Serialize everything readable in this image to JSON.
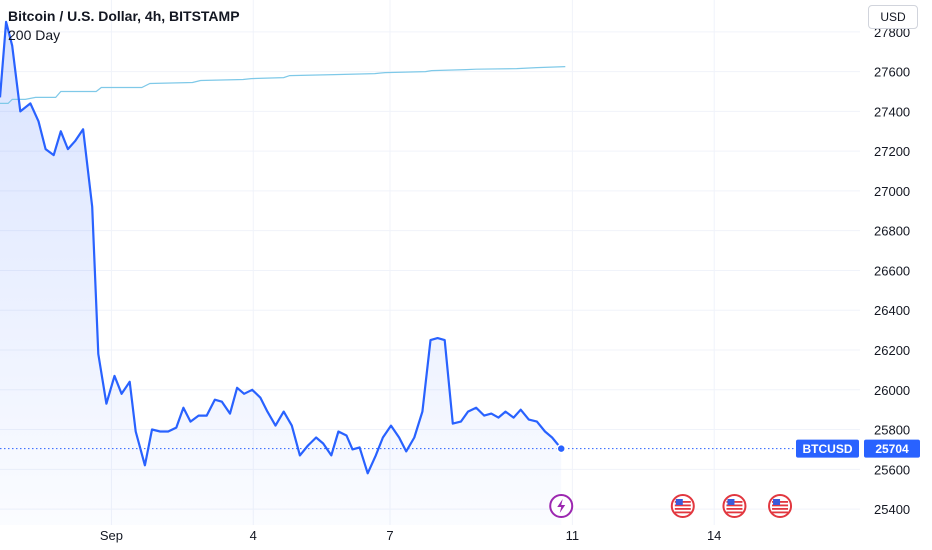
{
  "header": {
    "title": "Bitcoin / U.S. Dollar, 4h, BITSTAMP",
    "indicator": "200 Day",
    "currency_button": "USD"
  },
  "colors": {
    "price_line": "#2962ff",
    "ma_line": "#7fc9e8",
    "grid": "#f0f3fa",
    "label_bg": "#2962ff",
    "event_red": "#e2373f",
    "event_purple": "#9c27b0"
  },
  "chart_data": {
    "type": "line",
    "title": "Bitcoin / U.S. Dollar, 4h, BITSTAMP",
    "xlabel": "",
    "ylabel": "",
    "grid": true,
    "ylim": [
      25320,
      27960
    ],
    "xlim": [
      0,
      92
    ],
    "x_tick_labels": [
      {
        "x": 11.0,
        "label": "Sep"
      },
      {
        "x": 25.0,
        "label": "4"
      },
      {
        "x": 38.5,
        "label": "7"
      },
      {
        "x": 56.5,
        "label": "11"
      },
      {
        "x": 70.5,
        "label": "14"
      }
    ],
    "y_ticks": [
      25400,
      25600,
      25800,
      26000,
      26200,
      26400,
      26600,
      26800,
      27000,
      27200,
      27400,
      27600,
      27800
    ],
    "series": [
      {
        "name": "BTCUSD",
        "last_value": "25704",
        "points": [
          [
            0,
            27470
          ],
          [
            0.6,
            27850
          ],
          [
            1.2,
            27730
          ],
          [
            2,
            27400
          ],
          [
            3,
            27440
          ],
          [
            3.8,
            27350
          ],
          [
            4.5,
            27210
          ],
          [
            5.3,
            27180
          ],
          [
            6,
            27300
          ],
          [
            6.7,
            27210
          ],
          [
            7.4,
            27250
          ],
          [
            8.2,
            27310
          ],
          [
            9.1,
            26920
          ],
          [
            9.7,
            26180
          ],
          [
            10.5,
            25930
          ],
          [
            11.3,
            26070
          ],
          [
            12,
            25980
          ],
          [
            12.8,
            26040
          ],
          [
            13.4,
            25790
          ],
          [
            14.3,
            25620
          ],
          [
            15,
            25800
          ],
          [
            15.8,
            25790
          ],
          [
            16.6,
            25790
          ],
          [
            17.4,
            25810
          ],
          [
            18.1,
            25910
          ],
          [
            18.8,
            25840
          ],
          [
            19.6,
            25870
          ],
          [
            20.4,
            25870
          ],
          [
            21.2,
            25950
          ],
          [
            21.9,
            25940
          ],
          [
            22.7,
            25880
          ],
          [
            23.4,
            26010
          ],
          [
            24.1,
            25980
          ],
          [
            24.9,
            26000
          ],
          [
            25.7,
            25960
          ],
          [
            26.4,
            25890
          ],
          [
            27.2,
            25820
          ],
          [
            28,
            25890
          ],
          [
            28.8,
            25820
          ],
          [
            29.6,
            25670
          ],
          [
            30.4,
            25720
          ],
          [
            31.2,
            25760
          ],
          [
            31.9,
            25730
          ],
          [
            32.7,
            25670
          ],
          [
            33.4,
            25790
          ],
          [
            34.2,
            25770
          ],
          [
            34.8,
            25700
          ],
          [
            35.5,
            25710
          ],
          [
            36.3,
            25580
          ],
          [
            37.1,
            25670
          ],
          [
            37.8,
            25760
          ],
          [
            38.6,
            25820
          ],
          [
            39.4,
            25760
          ],
          [
            40.1,
            25690
          ],
          [
            40.9,
            25760
          ],
          [
            41.7,
            25890
          ],
          [
            42.5,
            26250
          ],
          [
            43.2,
            26260
          ],
          [
            43.9,
            26250
          ],
          [
            44.7,
            25830
          ],
          [
            45.5,
            25840
          ],
          [
            46.2,
            25890
          ],
          [
            47,
            25910
          ],
          [
            47.8,
            25870
          ],
          [
            48.5,
            25880
          ],
          [
            49.2,
            25860
          ],
          [
            49.9,
            25890
          ],
          [
            50.7,
            25860
          ],
          [
            51.4,
            25900
          ],
          [
            52.2,
            25850
          ],
          [
            53,
            25840
          ],
          [
            53.8,
            25790
          ],
          [
            54.5,
            25760
          ],
          [
            55.4,
            25704
          ]
        ]
      },
      {
        "name": "200 Day",
        "points": [
          [
            0,
            27440
          ],
          [
            0.8,
            27440
          ],
          [
            1.2,
            27460
          ],
          [
            2.5,
            27460
          ],
          [
            3.5,
            27470
          ],
          [
            5.5,
            27470
          ],
          [
            6,
            27500
          ],
          [
            9.5,
            27500
          ],
          [
            10,
            27520
          ],
          [
            14,
            27520
          ],
          [
            14.8,
            27540
          ],
          [
            19,
            27545
          ],
          [
            19.8,
            27555
          ],
          [
            24,
            27560
          ],
          [
            24.8,
            27565
          ],
          [
            28,
            27570
          ],
          [
            28.6,
            27580
          ],
          [
            33,
            27585
          ],
          [
            37,
            27590
          ],
          [
            38,
            27595
          ],
          [
            42,
            27600
          ],
          [
            42.6,
            27605
          ],
          [
            46,
            27610
          ],
          [
            47,
            27612
          ],
          [
            51,
            27615
          ],
          [
            53,
            27620
          ],
          [
            55.8,
            27625
          ]
        ]
      }
    ],
    "price_labels": {
      "symbol": "BTCUSD",
      "value": "25704"
    },
    "event_markers": [
      {
        "type": "lightning",
        "x": 55.4
      },
      {
        "type": "us-flag",
        "x": 67.4
      },
      {
        "type": "us-flag",
        "x": 72.5
      },
      {
        "type": "us-flag",
        "x": 77.0
      }
    ]
  }
}
